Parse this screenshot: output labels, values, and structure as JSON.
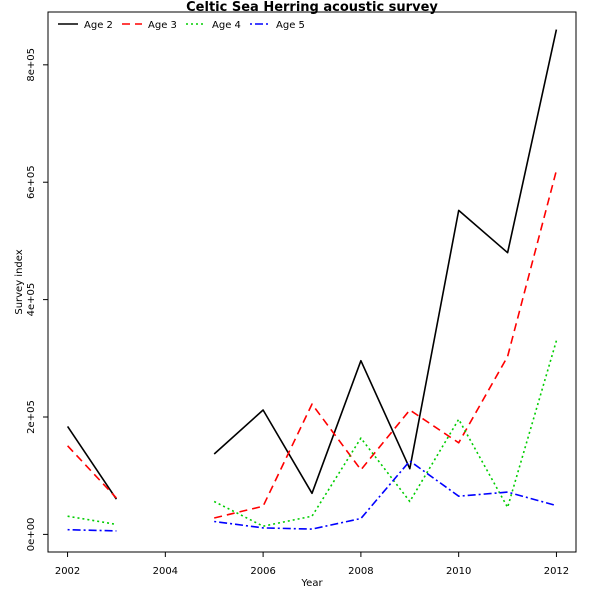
{
  "chart_data": {
    "type": "line",
    "title": "Celtic Sea Herring acoustic survey",
    "xlabel": "Year",
    "ylabel": "Survey index",
    "xlim": [
      2001.6,
      2012.4
    ],
    "ylim": [
      -30000,
      890000
    ],
    "x_ticks": [
      2002,
      2004,
      2006,
      2008,
      2010,
      2012
    ],
    "x_tick_labels": [
      "2002",
      "2004",
      "2006",
      "2008",
      "2010",
      "2012"
    ],
    "y_ticks": [
      0,
      200000,
      400000,
      600000,
      800000
    ],
    "y_tick_labels": [
      "0e+00",
      "2e+05",
      "4e+05",
      "6e+05",
      "8e+05"
    ],
    "legend_position": "top-left",
    "x": [
      2002,
      2003,
      2004,
      2005,
      2006,
      2007,
      2008,
      2009,
      2010,
      2011,
      2012
    ],
    "series": [
      {
        "name": "Age 2",
        "color": "#000000",
        "dash": "solid",
        "values": [
          184000,
          60000,
          null,
          137000,
          212000,
          70000,
          296000,
          112000,
          552000,
          480000,
          860000
        ]
      },
      {
        "name": "Age 3",
        "color": "#ff0000",
        "dash": "dashed",
        "values": [
          151000,
          62000,
          null,
          28000,
          48000,
          222000,
          110000,
          212000,
          156000,
          303000,
          620000
        ]
      },
      {
        "name": "Age 4",
        "color": "#00cd00",
        "dash": "dotted",
        "values": [
          31000,
          17000,
          null,
          56000,
          14000,
          31000,
          164000,
          56000,
          196000,
          46000,
          330000
        ]
      },
      {
        "name": "Age 5",
        "color": "#0000ff",
        "dash": "dotdash",
        "values": [
          8000,
          6000,
          null,
          22000,
          11000,
          9000,
          27000,
          125000,
          65000,
          72000,
          49000
        ]
      }
    ]
  }
}
